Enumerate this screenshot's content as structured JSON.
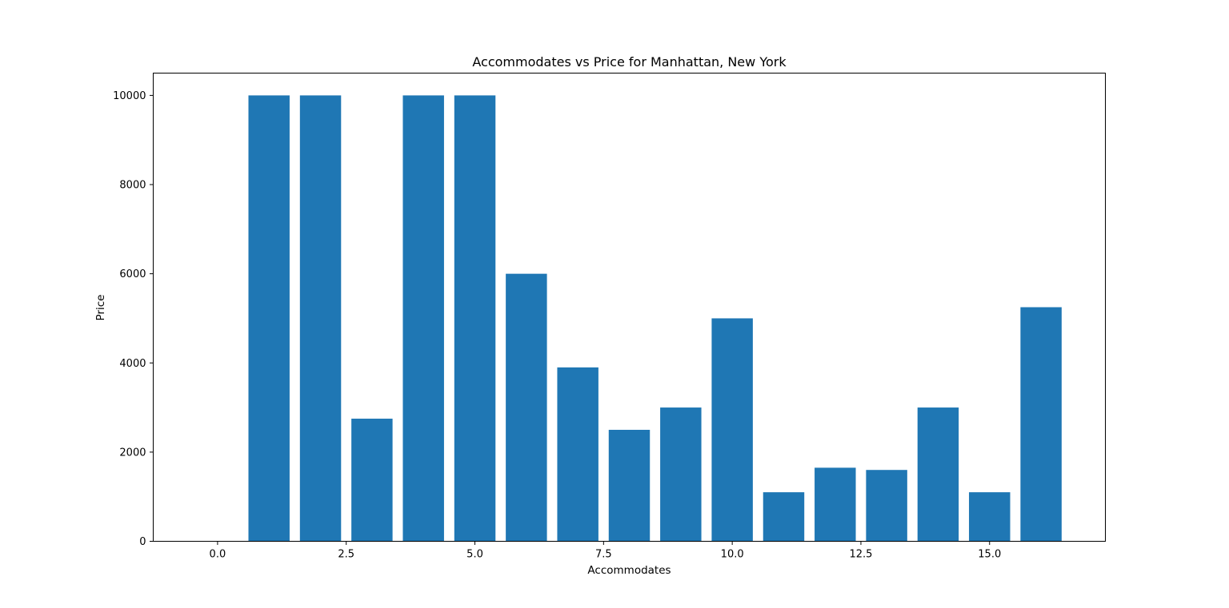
{
  "chart_data": {
    "type": "bar",
    "title": "Accommodates vs Price for Manhattan, New York",
    "xlabel": "Accommodates",
    "ylabel": "Price",
    "x": [
      0,
      1,
      2,
      3,
      4,
      5,
      6,
      7,
      8,
      9,
      10,
      11,
      12,
      13,
      14,
      15,
      16
    ],
    "values": [
      0,
      10000,
      10000,
      2750,
      10000,
      10000,
      6000,
      3900,
      2500,
      3000,
      5000,
      1100,
      1650,
      1600,
      3000,
      1100,
      5250
    ],
    "bar_width": 0.8,
    "xlim": [
      -1.25,
      17.25
    ],
    "ylim": [
      0,
      10500
    ],
    "xticks": [
      0.0,
      2.5,
      5.0,
      7.5,
      10.0,
      12.5,
      15.0
    ],
    "xtick_labels": [
      "0.0",
      "2.5",
      "5.0",
      "7.5",
      "10.0",
      "12.5",
      "15.0"
    ],
    "yticks": [
      0,
      2000,
      4000,
      6000,
      8000,
      10000
    ],
    "ytick_labels": [
      "0",
      "2000",
      "4000",
      "6000",
      "8000",
      "10000"
    ],
    "bar_color": "#1f77b4",
    "grid": false,
    "legend": "none"
  }
}
